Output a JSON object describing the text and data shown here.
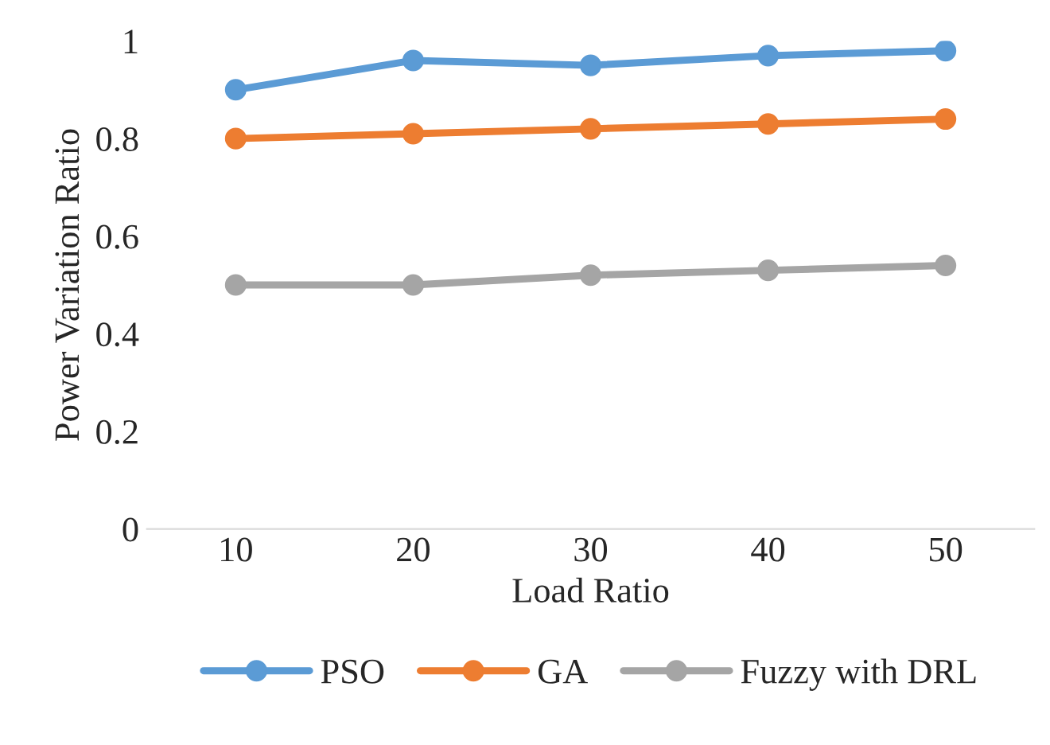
{
  "chart_data": {
    "type": "line",
    "xlabel": "Load Ratio",
    "ylabel": "Power Variation Ratio",
    "categories": [
      "10",
      "20",
      "30",
      "40",
      "50"
    ],
    "series": [
      {
        "name": "PSO",
        "color": "#5b9bd5",
        "values": [
          0.9,
          0.96,
          0.95,
          0.97,
          0.98
        ]
      },
      {
        "name": "GA",
        "color": "#ed7d31",
        "values": [
          0.8,
          0.81,
          0.82,
          0.83,
          0.84
        ]
      },
      {
        "name": "Fuzzy with DRL",
        "color": "#a5a5a5",
        "values": [
          0.5,
          0.5,
          0.52,
          0.53,
          0.54
        ]
      }
    ],
    "ylim": [
      0,
      1
    ],
    "yticks": [
      0,
      0.2,
      0.4,
      0.6,
      0.8,
      1
    ],
    "grid": false,
    "legend": "bottom",
    "marker": "circle",
    "line_style": "solid"
  }
}
